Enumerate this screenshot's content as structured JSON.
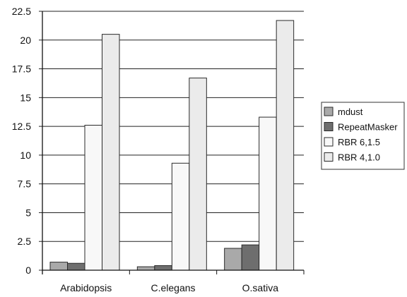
{
  "chart_data": {
    "type": "bar",
    "categories": [
      "Arabidopsis",
      "C.elegans",
      "O.sativa"
    ],
    "series": [
      {
        "name": "mdust",
        "values": [
          0.7,
          0.3,
          1.9
        ],
        "color": "#a9a9a9"
      },
      {
        "name": "RepeatMasker",
        "values": [
          0.6,
          0.4,
          2.2
        ],
        "color": "#6e6e6e"
      },
      {
        "name": "RBR 6,1.5",
        "values": [
          12.6,
          9.3,
          13.3
        ],
        "color": "#f8f8f8"
      },
      {
        "name": "RBR 4,1.0",
        "values": [
          20.5,
          16.7,
          21.7
        ],
        "color": "#ebebeb"
      }
    ],
    "yticks": [
      "0",
      "2.5",
      "5",
      "7.5",
      "10",
      "12.5",
      "15",
      "17.5",
      "20",
      "22.5"
    ],
    "ylim": [
      0,
      22.5
    ],
    "grid": true,
    "legend_position": "right",
    "title": "",
    "xlabel": "",
    "ylabel": ""
  }
}
